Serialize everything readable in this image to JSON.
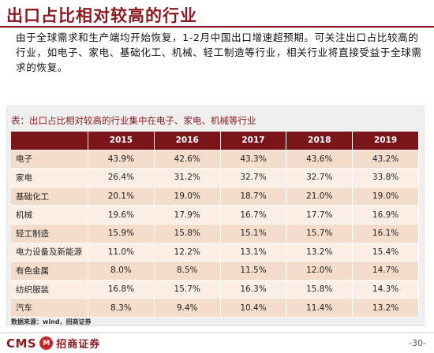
{
  "slide": {
    "title": "出口占比相对较高的行业",
    "intro": "由于全球需求和生产端均开始恢复，1-2月中国出口增速超预期。可关注出口占比较高的行业，如电子、家电、基础化工、机械、轻工制造等行业，相关行业将直接受益于全球需求的恢复。"
  },
  "table": {
    "caption": "表：出口占比相对较高的行业集中在电子、家电、机械等行业",
    "headers": [
      "",
      "2015",
      "2016",
      "2017",
      "2018",
      "2019"
    ],
    "rows": [
      {
        "label": "电子",
        "values": [
          "43.9%",
          "42.6%",
          "43.3%",
          "43.6%",
          "43.2%"
        ]
      },
      {
        "label": "家电",
        "values": [
          "26.4%",
          "31.2%",
          "32.7%",
          "32.7%",
          "33.8%"
        ]
      },
      {
        "label": "基础化工",
        "values": [
          "20.1%",
          "19.0%",
          "18.7%",
          "21.0%",
          "19.0%"
        ]
      },
      {
        "label": "机械",
        "values": [
          "19.6%",
          "17.9%",
          "16.7%",
          "17.7%",
          "16.9%"
        ]
      },
      {
        "label": "轻工制造",
        "values": [
          "15.9%",
          "15.8%",
          "15.1%",
          "15.7%",
          "16.1%"
        ]
      },
      {
        "label": "电力设备及新能源",
        "values": [
          "11.0%",
          "12.2%",
          "13.1%",
          "13.2%",
          "15.4%"
        ]
      },
      {
        "label": "有色金属",
        "values": [
          "8.0%",
          "8.5%",
          "11.5%",
          "12.0%",
          "14.7%"
        ]
      },
      {
        "label": "纺织服装",
        "values": [
          "16.8%",
          "15.7%",
          "16.3%",
          "15.8%",
          "14.3%"
        ]
      },
      {
        "label": "汽车",
        "values": [
          "8.3%",
          "9.4%",
          "10.4%",
          "11.4%",
          "13.2%"
        ]
      }
    ],
    "source": "数据来源：wind，招商证券"
  },
  "footer": {
    "logo_text": "CMS",
    "logo_mark": "M",
    "logo_cn": "招商证券",
    "page_number": "-30-"
  },
  "colors": {
    "brand": "#8b1a1f",
    "header_bg": "#7a1519",
    "row_odd": "#f3dcc9",
    "row_even": "#fbeee5"
  }
}
